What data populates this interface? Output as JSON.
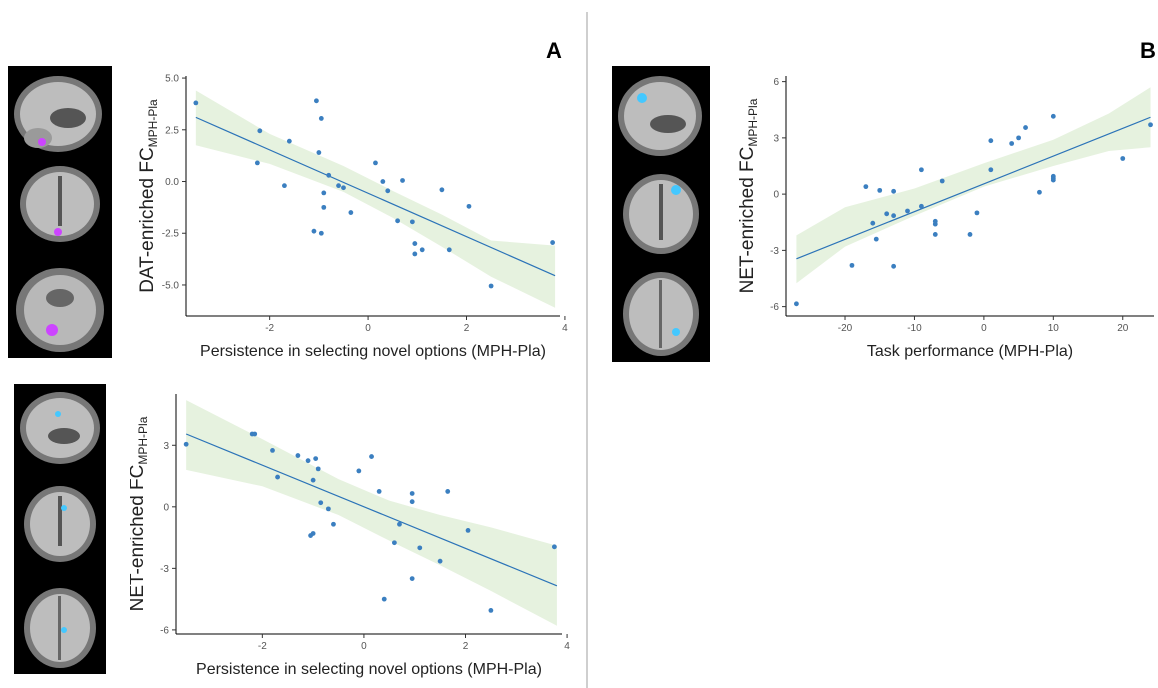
{
  "panels": {
    "a_label": "A",
    "b_label": "B"
  },
  "brain_images": [
    "sagittal-slice",
    "coronal-slice",
    "axial-slice"
  ],
  "colors": {
    "line": "#2b73b8",
    "point": "#3b7fc0",
    "band": "#e6f2df",
    "highlight_dat": "#cc44ff",
    "highlight_net": "#44c8ff"
  },
  "chart_data": [
    {
      "type": "scatter",
      "panel": "A",
      "title": "",
      "xlabel": "Persistence in selecting novel options (MPH-Pla)",
      "ylabel_main": "DAT-enriched FC",
      "ylabel_sub": "MPH-Pla",
      "xlim": [
        -3.7,
        3.9
      ],
      "ylim": [
        -6.5,
        5.1
      ],
      "xticks": [
        -2,
        0,
        2,
        4
      ],
      "yticks": [
        5.0,
        2.5,
        0.0,
        -2.5,
        -5.0
      ],
      "ytick_labels": [
        "5.0",
        "2.5",
        "0.0",
        "-2.5",
        "-5.0"
      ],
      "fit": {
        "x": [
          -3.5,
          3.8
        ],
        "y": [
          3.1,
          -4.55
        ]
      },
      "band_upper": [
        [
          -3.5,
          4.4
        ],
        [
          -2,
          2.3
        ],
        [
          -0.5,
          0.75
        ],
        [
          0.5,
          -0.45
        ],
        [
          1.5,
          -1.6
        ],
        [
          2.5,
          -2.85
        ],
        [
          3.8,
          -3.1
        ]
      ],
      "band_lower": [
        [
          -3.5,
          1.75
        ],
        [
          -2,
          0.85
        ],
        [
          -0.5,
          -0.5
        ],
        [
          0.5,
          -1.75
        ],
        [
          1.5,
          -3.15
        ],
        [
          2.5,
          -4.6
        ],
        [
          3.8,
          -6.1
        ]
      ],
      "x": [
        -3.5,
        -2.2,
        -2.25,
        -1.7,
        -1.6,
        -1.05,
        -1.0,
        -0.95,
        -0.9,
        -0.9,
        -0.95,
        -1.1,
        -0.8,
        -0.6,
        -0.5,
        -0.35,
        0.15,
        0.3,
        0.4,
        0.6,
        0.7,
        0.95,
        0.9,
        0.95,
        1.1,
        1.5,
        1.65,
        2.05,
        2.5,
        3.75
      ],
      "y": [
        3.8,
        2.45,
        0.9,
        -0.2,
        1.95,
        3.9,
        1.4,
        3.05,
        -0.55,
        -1.25,
        -2.5,
        -2.4,
        0.3,
        -0.2,
        -0.3,
        -1.5,
        0.9,
        0.0,
        -0.45,
        -1.9,
        0.05,
        -3.0,
        -1.95,
        -3.5,
        -3.3,
        -0.4,
        -3.3,
        -1.2,
        -5.05,
        -2.95
      ]
    },
    {
      "type": "scatter",
      "panel": "A",
      "title": "",
      "xlabel": "Persistence in selecting novel options (MPH-Pla)",
      "ylabel_main": "NET-enriched FC",
      "ylabel_sub": "MPH-Pla",
      "xlim": [
        -3.7,
        3.9
      ],
      "ylim": [
        -6.2,
        5.5
      ],
      "xticks": [
        -2,
        0,
        2,
        4
      ],
      "yticks": [
        3,
        0,
        -3,
        -6
      ],
      "ytick_labels": [
        "3",
        "0",
        "-3",
        "-6"
      ],
      "fit": {
        "x": [
          -3.5,
          3.8
        ],
        "y": [
          3.55,
          -3.85
        ]
      },
      "band_upper": [
        [
          -3.5,
          5.2
        ],
        [
          -2,
          3.3
        ],
        [
          -0.5,
          1.35
        ],
        [
          0.5,
          0.3
        ],
        [
          1.5,
          -0.4
        ],
        [
          2.5,
          -1.0
        ],
        [
          3.8,
          -1.9
        ]
      ],
      "band_lower": [
        [
          -3.5,
          1.8
        ],
        [
          -2,
          1.0
        ],
        [
          -0.5,
          -0.4
        ],
        [
          0.5,
          -1.65
        ],
        [
          1.5,
          -2.85
        ],
        [
          2.5,
          -4.1
        ],
        [
          3.8,
          -5.8
        ]
      ],
      "x": [
        -3.5,
        -2.2,
        -2.15,
        -1.8,
        -1.7,
        -1.3,
        -1.1,
        -1.0,
        -0.95,
        -0.9,
        -1.05,
        -1.0,
        -0.85,
        -0.7,
        -0.6,
        -0.1,
        0.15,
        0.3,
        0.4,
        0.6,
        0.7,
        0.95,
        0.95,
        0.95,
        1.1,
        1.5,
        1.65,
        2.05,
        2.5,
        3.75
      ],
      "y": [
        3.05,
        3.55,
        3.55,
        2.75,
        1.45,
        2.5,
        2.25,
        1.3,
        2.35,
        1.85,
        -1.4,
        -1.3,
        0.2,
        -0.1,
        -0.85,
        1.75,
        2.45,
        0.75,
        -4.5,
        -1.75,
        -0.85,
        0.25,
        0.65,
        -3.5,
        -2.0,
        -2.65,
        0.75,
        -1.15,
        -5.05,
        -1.95
      ]
    },
    {
      "type": "scatter",
      "panel": "B",
      "title": "",
      "xlabel": "Task performance (MPH-Pla)",
      "ylabel_main": "NET-enriched FC",
      "ylabel_sub": "MPH-Pla",
      "xlim": [
        -28.5,
        24.5
      ],
      "ylim": [
        -6.5,
        6.3
      ],
      "xticks": [
        -20,
        -10,
        0,
        10,
        20
      ],
      "yticks": [
        6,
        3,
        0,
        -3,
        -6
      ],
      "ytick_labels": [
        "6",
        "3",
        "0",
        "-3",
        "-6"
      ],
      "fit": {
        "x": [
          -27,
          24
        ],
        "y": [
          -3.45,
          4.1
        ]
      },
      "band_upper": [
        [
          -27,
          -2.2
        ],
        [
          -20,
          -0.7
        ],
        [
          -10,
          0.3
        ],
        [
          0,
          1.65
        ],
        [
          10,
          2.9
        ],
        [
          18,
          4.3
        ],
        [
          24,
          5.7
        ]
      ],
      "band_lower": [
        [
          -27,
          -4.75
        ],
        [
          -20,
          -2.8
        ],
        [
          -10,
          -1.15
        ],
        [
          0,
          0.4
        ],
        [
          10,
          1.5
        ],
        [
          18,
          2.3
        ],
        [
          24,
          2.5
        ]
      ],
      "x": [
        -27,
        -19,
        -17,
        -16,
        -15.5,
        -15,
        -14,
        -13,
        -13,
        -13,
        -11,
        -9,
        -9,
        -7,
        -7,
        -7,
        -6,
        -2,
        -1,
        1,
        1,
        4,
        5,
        6,
        8,
        10,
        10,
        10,
        10,
        20,
        24
      ],
      "y": [
        -5.85,
        -3.8,
        0.4,
        -1.55,
        -2.4,
        0.2,
        -1.05,
        -1.15,
        0.15,
        -3.85,
        -0.9,
        1.3,
        -0.65,
        -1.6,
        -2.15,
        -1.45,
        0.7,
        -2.15,
        -1.0,
        1.3,
        2.85,
        2.7,
        3.0,
        3.55,
        0.1,
        4.15,
        0.95,
        0.85,
        0.75,
        1.9,
        3.7
      ]
    }
  ]
}
